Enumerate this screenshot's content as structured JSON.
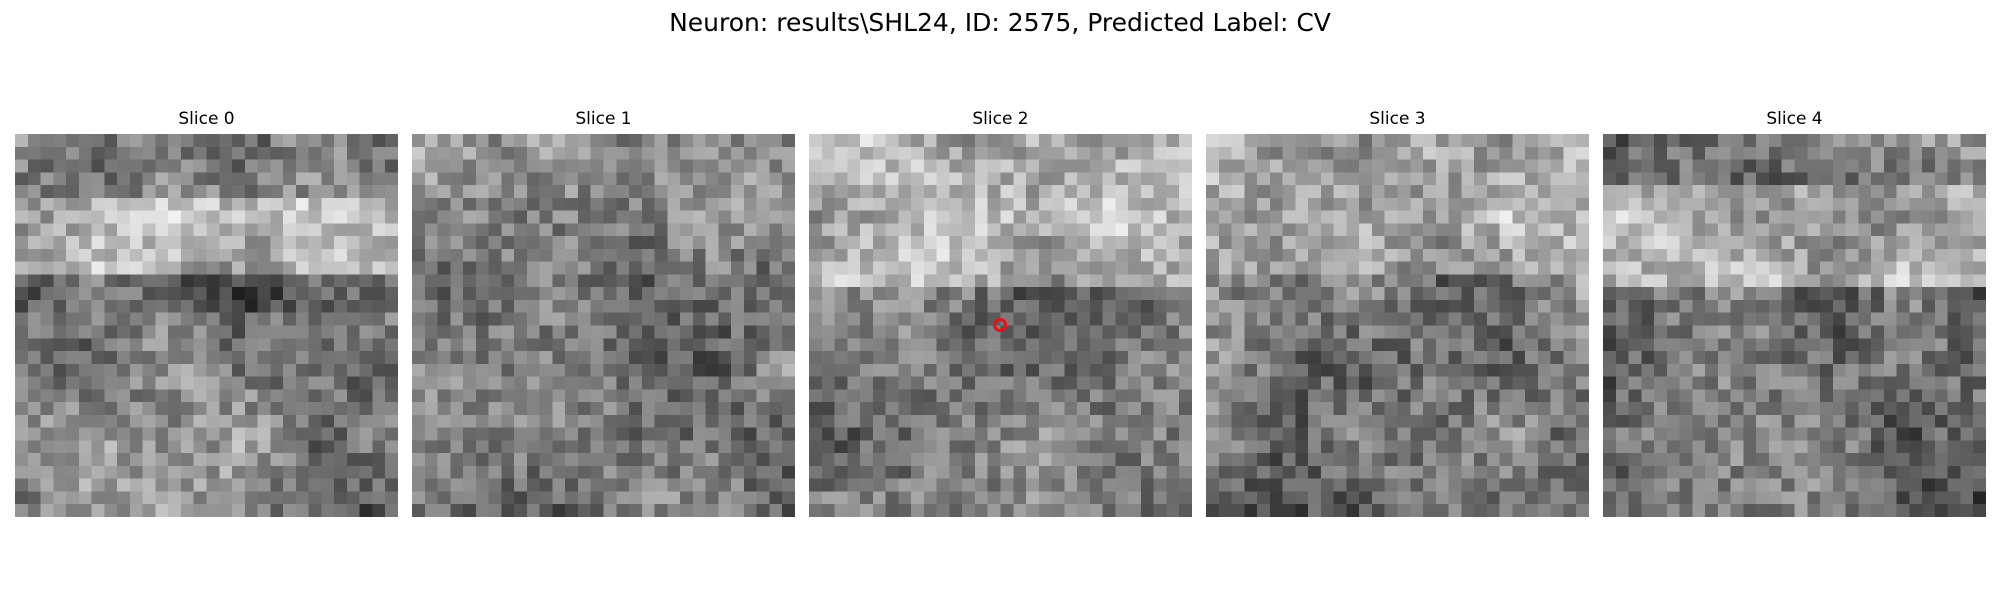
{
  "figure": {
    "title": "Neuron: results\\SHL24, ID: 2575, Predicted Label: CV",
    "marker_color": "#e8101a",
    "marker_slice_index": 2,
    "slices": [
      {
        "label": "Slice 0"
      },
      {
        "label": "Slice 1"
      },
      {
        "label": "Slice 2"
      },
      {
        "label": "Slice 3"
      },
      {
        "label": "Slice 4"
      }
    ]
  }
}
